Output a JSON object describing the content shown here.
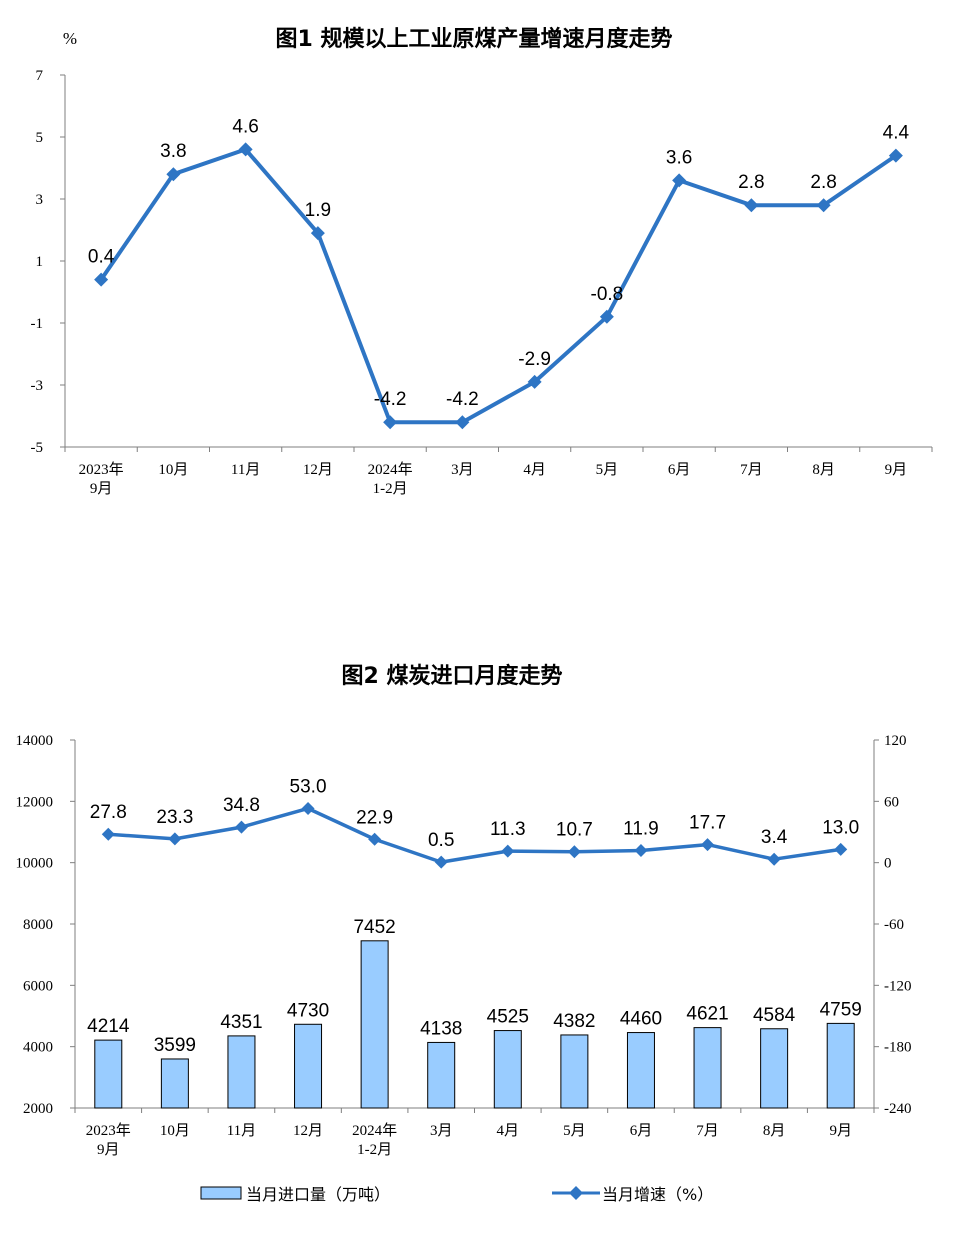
{
  "chart_data": [
    {
      "type": "line",
      "title": "图1  规模以上工业原煤产量增速月度走势",
      "ylabel": "%",
      "ylim": [
        -5,
        7
      ],
      "yticks": [
        7,
        5,
        3,
        1,
        -1,
        -3,
        -5
      ],
      "categories": [
        [
          "2023年",
          "9月"
        ],
        [
          "10月"
        ],
        [
          "11月"
        ],
        [
          "12月"
        ],
        [
          "2024年",
          "1-2月"
        ],
        [
          "3月"
        ],
        [
          "4月"
        ],
        [
          "5月"
        ],
        [
          "6月"
        ],
        [
          "7月"
        ],
        [
          "8月"
        ],
        [
          "9月"
        ]
      ],
      "series": [
        {
          "values": [
            0.4,
            3.8,
            4.6,
            1.9,
            -4.2,
            -4.2,
            -2.9,
            -0.8,
            3.6,
            2.8,
            2.8,
            4.4
          ],
          "labels": [
            "0.4",
            "3.8",
            "4.6",
            "1.9",
            "-4.2",
            "-4.2",
            "-2.9",
            "-0.8",
            "3.6",
            "2.8",
            "2.8",
            "4.4"
          ]
        }
      ],
      "color": "#2e75c4",
      "grid": false
    },
    {
      "type": "bar+line",
      "title": "图2  煤炭进口月度走势",
      "ylim_left": [
        2000,
        14000
      ],
      "yticks_left": [
        14000,
        12000,
        10000,
        8000,
        6000,
        4000,
        2000
      ],
      "ylim_right": [
        -240,
        120
      ],
      "yticks_right": [
        120,
        60,
        0,
        -60,
        -120,
        -180,
        -240
      ],
      "categories": [
        [
          "2023年",
          "9月"
        ],
        [
          "10月"
        ],
        [
          "11月"
        ],
        [
          "12月"
        ],
        [
          "2024年",
          "1-2月"
        ],
        [
          "3月"
        ],
        [
          "4月"
        ],
        [
          "5月"
        ],
        [
          "6月"
        ],
        [
          "7月"
        ],
        [
          "8月"
        ],
        [
          "9月"
        ]
      ],
      "series": [
        {
          "name": "当月进口量（万吨）",
          "axis": "left",
          "kind": "bar",
          "values": [
            4214,
            3599,
            4351,
            4730,
            7452,
            4138,
            4525,
            4382,
            4460,
            4621,
            4584,
            4759
          ],
          "labels": [
            "4214",
            "3599",
            "4351",
            "4730",
            "7452",
            "4138",
            "4525",
            "4382",
            "4460",
            "4621",
            "4584",
            "4759"
          ]
        },
        {
          "name": "当月增速（%）",
          "axis": "right",
          "kind": "line",
          "values": [
            27.8,
            23.3,
            34.8,
            53.0,
            22.9,
            0.5,
            11.3,
            10.7,
            11.9,
            17.7,
            3.4,
            13.0
          ],
          "labels": [
            "27.8",
            "23.3",
            "34.8",
            "53.0",
            "22.9",
            "0.5",
            "11.3",
            "10.7",
            "11.9",
            "17.7",
            "3.4",
            "13.0"
          ]
        }
      ],
      "bar_color": "#99ccff",
      "line_color": "#2e75c4",
      "legend_position": "bottom",
      "grid": false
    }
  ]
}
